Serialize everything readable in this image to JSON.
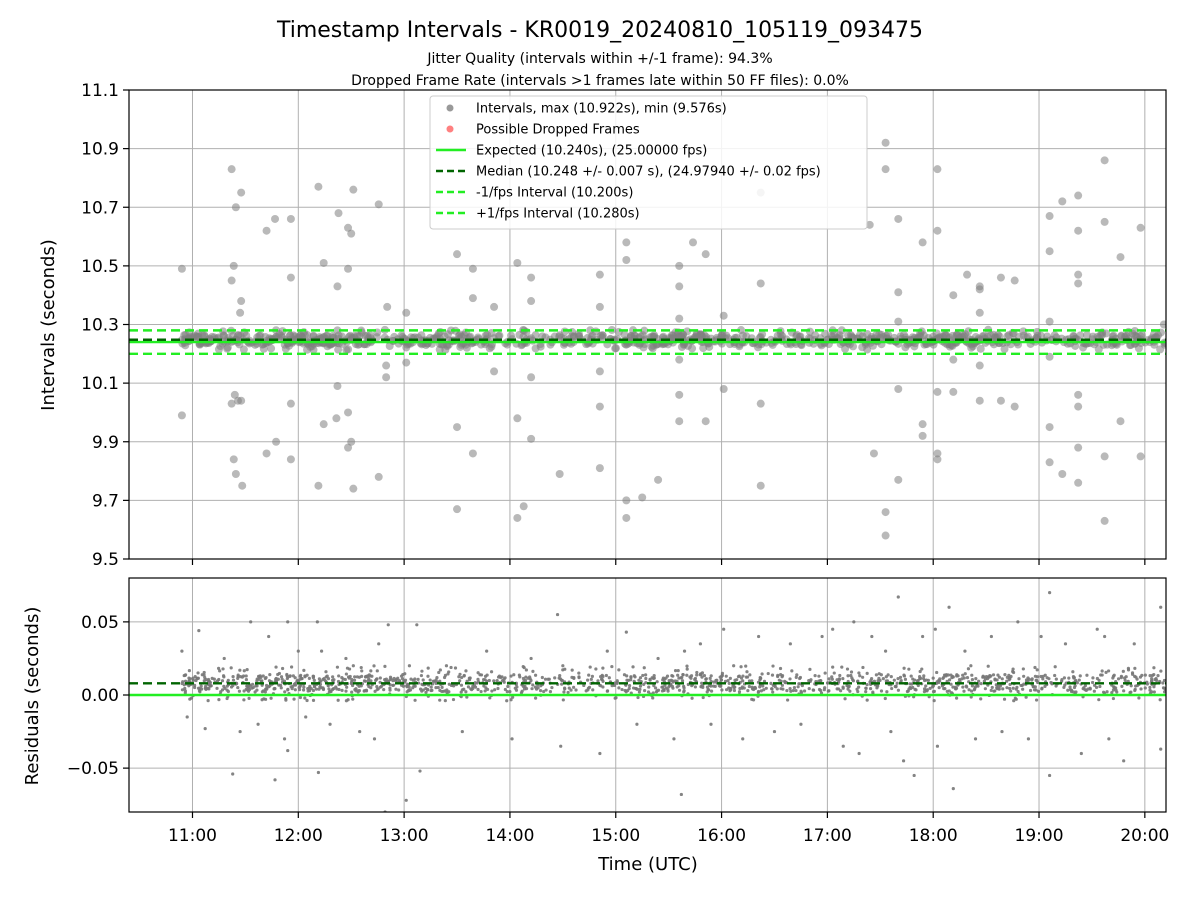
{
  "figure": {
    "title": "Timestamp Intervals - KR0019_20240810_105119_093475",
    "subtitle_1": "Jitter Quality (intervals within +/-1 frame): 94.3%",
    "subtitle_2": "Dropped Frame Rate (intervals >1 frames late within 50 FF files): 0.0%"
  },
  "chart_data": [
    {
      "type": "scatter",
      "panel": "intervals",
      "ylabel": "Intervals (seconds)",
      "xlabel": "",
      "xlim_hours": [
        10.4,
        20.2
      ],
      "ylim": [
        9.5,
        11.1
      ],
      "yticks": [
        9.5,
        9.7,
        9.9,
        10.1,
        10.3,
        10.5,
        10.7,
        10.9,
        11.1
      ],
      "ytick_labels": [
        "9.5",
        "9.7",
        "9.9",
        "10.1",
        "10.3",
        "10.5",
        "10.7",
        "10.9",
        "11.1"
      ],
      "xticks_hours": [
        11,
        12,
        13,
        14,
        15,
        16,
        17,
        18,
        19,
        20
      ],
      "grid": true,
      "legend_position": "top-center",
      "series": [
        {
          "name": "Intervals, max (10.922s), min (9.576s)",
          "kind": "points",
          "color": "#808080",
          "points": [
            [
              10.9,
              10.49
            ],
            [
              10.9,
              9.99
            ],
            [
              11.37,
              10.83
            ],
            [
              11.37,
              10.45
            ],
            [
              11.39,
              10.5
            ],
            [
              11.41,
              10.7
            ],
            [
              11.46,
              10.75
            ],
            [
              11.46,
              10.38
            ],
            [
              11.45,
              10.34
            ],
            [
              11.4,
              10.06
            ],
            [
              11.43,
              10.04
            ],
            [
              11.46,
              10.04
            ],
            [
              11.37,
              10.03
            ],
            [
              11.39,
              9.84
            ],
            [
              11.41,
              9.79
            ],
            [
              11.47,
              9.75
            ],
            [
              11.7,
              10.62
            ],
            [
              11.78,
              10.66
            ],
            [
              11.93,
              10.66
            ],
            [
              11.93,
              10.46
            ],
            [
              11.93,
              10.03
            ],
            [
              11.93,
              9.84
            ],
            [
              11.79,
              9.9
            ],
            [
              11.7,
              9.86
            ],
            [
              12.19,
              10.77
            ],
            [
              12.24,
              10.51
            ],
            [
              12.37,
              10.43
            ],
            [
              12.38,
              10.68
            ],
            [
              12.47,
              10.63
            ],
            [
              12.47,
              10.49
            ],
            [
              12.5,
              10.61
            ],
            [
              12.52,
              10.76
            ],
            [
              12.19,
              9.75
            ],
            [
              12.24,
              9.96
            ],
            [
              12.37,
              10.09
            ],
            [
              12.36,
              9.98
            ],
            [
              12.47,
              10.0
            ],
            [
              12.47,
              9.88
            ],
            [
              12.5,
              9.9
            ],
            [
              12.52,
              9.74
            ],
            [
              12.76,
              10.71
            ],
            [
              12.84,
              10.36
            ],
            [
              12.83,
              10.16
            ],
            [
              12.83,
              10.12
            ],
            [
              12.76,
              9.78
            ],
            [
              13.02,
              10.34
            ],
            [
              13.02,
              10.17
            ],
            [
              13.5,
              10.54
            ],
            [
              13.5,
              9.95
            ],
            [
              13.5,
              9.67
            ],
            [
              13.65,
              10.49
            ],
            [
              13.65,
              10.39
            ],
            [
              13.65,
              9.86
            ],
            [
              13.85,
              10.36
            ],
            [
              13.85,
              10.14
            ],
            [
              14.07,
              10.51
            ],
            [
              14.07,
              9.98
            ],
            [
              14.07,
              9.64
            ],
            [
              14.13,
              9.68
            ],
            [
              14.2,
              10.46
            ],
            [
              14.2,
              10.38
            ],
            [
              14.2,
              10.12
            ],
            [
              14.2,
              9.91
            ],
            [
              14.47,
              9.79
            ],
            [
              14.85,
              10.47
            ],
            [
              14.85,
              10.36
            ],
            [
              14.85,
              10.14
            ],
            [
              14.85,
              10.02
            ],
            [
              14.85,
              9.81
            ],
            [
              15.1,
              10.58
            ],
            [
              15.1,
              10.52
            ],
            [
              15.1,
              9.7
            ],
            [
              15.1,
              9.64
            ],
            [
              15.25,
              9.71
            ],
            [
              15.4,
              9.77
            ],
            [
              15.6,
              10.5
            ],
            [
              15.6,
              10.43
            ],
            [
              15.6,
              10.32
            ],
            [
              15.6,
              10.18
            ],
            [
              15.6,
              10.06
            ],
            [
              15.6,
              9.97
            ],
            [
              15.73,
              10.58
            ],
            [
              15.85,
              10.54
            ],
            [
              15.85,
              9.97
            ],
            [
              16.02,
              10.33
            ],
            [
              16.02,
              10.08
            ],
            [
              16.37,
              10.44
            ],
            [
              16.37,
              10.03
            ],
            [
              16.37,
              10.75
            ],
            [
              16.37,
              9.75
            ],
            [
              17.4,
              10.64
            ],
            [
              17.44,
              9.86
            ],
            [
              17.55,
              10.92
            ],
            [
              17.55,
              10.83
            ],
            [
              17.55,
              9.66
            ],
            [
              17.55,
              9.58
            ],
            [
              17.67,
              10.66
            ],
            [
              17.67,
              10.41
            ],
            [
              17.67,
              10.31
            ],
            [
              17.67,
              10.08
            ],
            [
              17.67,
              9.77
            ],
            [
              17.9,
              10.58
            ],
            [
              17.9,
              9.96
            ],
            [
              17.9,
              9.92
            ],
            [
              18.04,
              10.83
            ],
            [
              18.04,
              10.62
            ],
            [
              18.04,
              10.07
            ],
            [
              18.04,
              9.86
            ],
            [
              18.04,
              9.84
            ],
            [
              18.19,
              10.4
            ],
            [
              18.19,
              10.18
            ],
            [
              18.19,
              10.07
            ],
            [
              18.32,
              10.47
            ],
            [
              18.44,
              10.43
            ],
            [
              18.44,
              10.42
            ],
            [
              18.44,
              10.34
            ],
            [
              18.44,
              10.16
            ],
            [
              18.44,
              10.04
            ],
            [
              18.64,
              10.46
            ],
            [
              18.64,
              10.04
            ],
            [
              18.77,
              10.45
            ],
            [
              18.77,
              10.02
            ],
            [
              19.1,
              10.67
            ],
            [
              19.1,
              10.55
            ],
            [
              19.1,
              10.31
            ],
            [
              19.1,
              10.19
            ],
            [
              19.1,
              9.95
            ],
            [
              19.1,
              9.83
            ],
            [
              19.22,
              10.72
            ],
            [
              19.22,
              9.79
            ],
            [
              19.37,
              10.74
            ],
            [
              19.37,
              10.62
            ],
            [
              19.37,
              10.47
            ],
            [
              19.37,
              10.44
            ],
            [
              19.37,
              10.06
            ],
            [
              19.37,
              10.02
            ],
            [
              19.37,
              9.88
            ],
            [
              19.37,
              9.76
            ],
            [
              19.62,
              10.86
            ],
            [
              19.62,
              10.65
            ],
            [
              19.62,
              9.85
            ],
            [
              19.62,
              9.63
            ],
            [
              19.77,
              10.53
            ],
            [
              19.77,
              9.97
            ],
            [
              19.96,
              10.63
            ],
            [
              19.96,
              9.85
            ],
            [
              20.18,
              10.3
            ]
          ]
        },
        {
          "name": "Possible Dropped Frames",
          "kind": "points",
          "color": "#ff6060",
          "points": []
        },
        {
          "name": "Expected (10.240s), (25.00000 fps)",
          "kind": "hline",
          "y": 10.24,
          "color": "#22ee22",
          "dash": "solid"
        },
        {
          "name": "Median (10.248 +/- 0.007 s), (24.97940 +/- 0.02 fps)",
          "kind": "hline",
          "y": 10.248,
          "color": "#006400",
          "dash": "dashed"
        },
        {
          "name": "-1/fps Interval (10.200s)",
          "kind": "hline",
          "y": 10.2,
          "color": "#22ee22",
          "dash": "dashed"
        },
        {
          "name": "+1/fps Interval (10.280s)",
          "kind": "hline",
          "y": 10.28,
          "color": "#22ee22",
          "dash": "dashed"
        }
      ]
    },
    {
      "type": "scatter",
      "panel": "residuals",
      "ylabel": "Residuals (seconds)",
      "xlabel": "Time (UTC)",
      "xlim_hours": [
        10.4,
        20.2
      ],
      "ylim": [
        -0.08,
        0.08
      ],
      "yticks": [
        -0.05,
        0.0,
        0.05
      ],
      "ytick_labels": [
        "−0.05",
        "0.00",
        "0.05"
      ],
      "xticks_hours": [
        11,
        12,
        13,
        14,
        15,
        16,
        17,
        18,
        19,
        20
      ],
      "xtick_labels": [
        "11:00",
        "12:00",
        "13:00",
        "14:00",
        "15:00",
        "16:00",
        "17:00",
        "18:00",
        "19:00",
        "20:00"
      ],
      "grid": true,
      "series": [
        {
          "name": "",
          "kind": "points",
          "color": "#777777",
          "points": [
            [
              10.9,
              0.03
            ],
            [
              10.95,
              -0.015
            ],
            [
              11.06,
              0.044
            ],
            [
              11.12,
              -0.023
            ],
            [
              11.3,
              0.025
            ],
            [
              11.38,
              -0.054
            ],
            [
              11.45,
              -0.025
            ],
            [
              11.55,
              0.05
            ],
            [
              11.62,
              -0.02
            ],
            [
              11.72,
              0.04
            ],
            [
              11.78,
              -0.058
            ],
            [
              11.87,
              -0.03
            ],
            [
              11.9,
              0.05
            ],
            [
              11.9,
              -0.038
            ],
            [
              12.0,
              0.03
            ],
            [
              12.07,
              -0.015
            ],
            [
              12.18,
              0.05
            ],
            [
              12.19,
              -0.053
            ],
            [
              12.22,
              0.03
            ],
            [
              12.3,
              -0.02
            ],
            [
              12.45,
              0.025
            ],
            [
              12.52,
              0.02
            ],
            [
              12.58,
              -0.025
            ],
            [
              12.72,
              -0.03
            ],
            [
              12.76,
              0.035
            ],
            [
              12.82,
              -0.08
            ],
            [
              12.85,
              0.048
            ],
            [
              13.02,
              -0.072
            ],
            [
              13.05,
              0.02
            ],
            [
              13.12,
              0.048
            ],
            [
              13.15,
              -0.052
            ],
            [
              13.4,
              0.02
            ],
            [
              13.55,
              -0.025
            ],
            [
              13.78,
              0.03
            ],
            [
              14.02,
              -0.03
            ],
            [
              14.2,
              0.025
            ],
            [
              14.45,
              0.055
            ],
            [
              14.48,
              -0.035
            ],
            [
              14.5,
              0.02
            ],
            [
              14.85,
              -0.04
            ],
            [
              14.92,
              0.03
            ],
            [
              15.1,
              0.043
            ],
            [
              15.2,
              -0.02
            ],
            [
              15.4,
              0.025
            ],
            [
              15.55,
              -0.03
            ],
            [
              15.62,
              -0.068
            ],
            [
              15.65,
              0.03
            ],
            [
              15.8,
              0.035
            ],
            [
              15.9,
              -0.02
            ],
            [
              16.02,
              0.045
            ],
            [
              16.2,
              -0.03
            ],
            [
              16.35,
              0.04
            ],
            [
              16.5,
              -0.025
            ],
            [
              16.65,
              0.035
            ],
            [
              16.75,
              -0.02
            ],
            [
              16.95,
              0.04
            ],
            [
              17.05,
              0.045
            ],
            [
              17.15,
              -0.035
            ],
            [
              17.25,
              0.05
            ],
            [
              17.3,
              -0.04
            ],
            [
              17.42,
              0.04
            ],
            [
              17.55,
              0.03
            ],
            [
              17.6,
              -0.025
            ],
            [
              17.67,
              0.067
            ],
            [
              17.72,
              -0.045
            ],
            [
              17.82,
              -0.055
            ],
            [
              17.9,
              0.04
            ],
            [
              18.02,
              0.045
            ],
            [
              18.04,
              -0.035
            ],
            [
              18.15,
              0.06
            ],
            [
              18.19,
              -0.064
            ],
            [
              18.3,
              0.03
            ],
            [
              18.4,
              -0.03
            ],
            [
              18.55,
              0.04
            ],
            [
              18.65,
              -0.025
            ],
            [
              18.8,
              0.05
            ],
            [
              18.9,
              -0.03
            ],
            [
              19.02,
              0.04
            ],
            [
              19.1,
              0.07
            ],
            [
              19.1,
              -0.055
            ],
            [
              19.25,
              0.035
            ],
            [
              19.4,
              -0.04
            ],
            [
              19.55,
              0.045
            ],
            [
              19.62,
              0.04
            ],
            [
              19.66,
              -0.03
            ],
            [
              19.8,
              -0.045
            ],
            [
              19.9,
              0.035
            ],
            [
              20.15,
              0.06
            ],
            [
              20.15,
              -0.037
            ]
          ]
        },
        {
          "name": "",
          "kind": "hline",
          "y": 0.0,
          "color": "#22ee22",
          "dash": "solid"
        },
        {
          "name": "",
          "kind": "hline",
          "y": 0.008,
          "color": "#006400",
          "dash": "dashed"
        }
      ]
    }
  ]
}
